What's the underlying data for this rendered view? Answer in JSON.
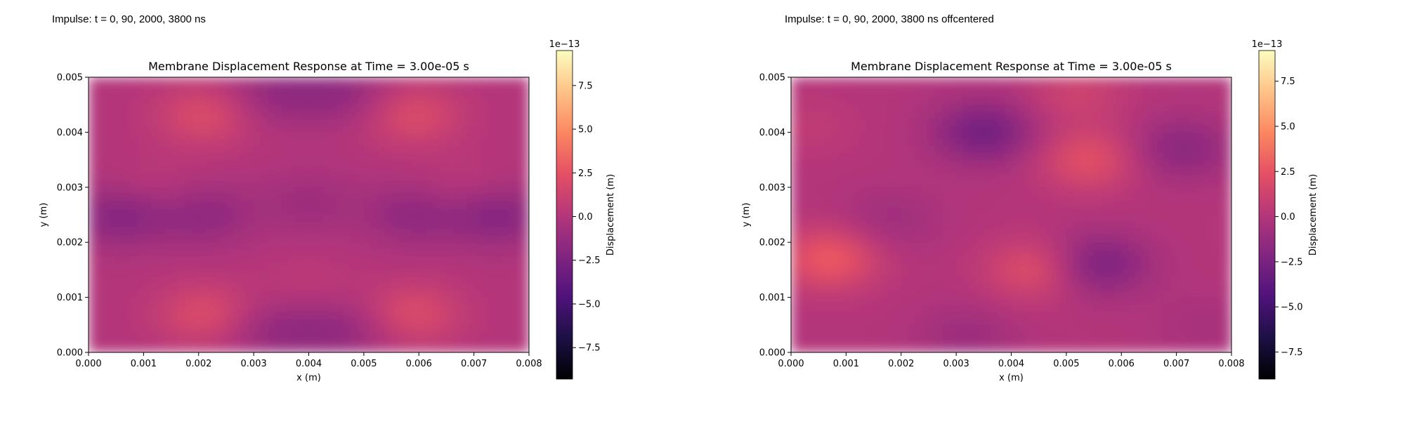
{
  "figure": {
    "panels": [
      {
        "caption": "Impulse: t = 0, 90, 2000, 3800 ns"
      },
      {
        "caption": "Impulse: t = 0, 90, 2000, 3800 ns offcentered"
      }
    ]
  },
  "chart_data": [
    {
      "type": "heatmap",
      "title": "Membrane Displacement Response at Time = 3.00e-05 s",
      "xlabel": "x (m)",
      "ylabel": "y (m)",
      "xlim": [
        0.0,
        0.008
      ],
      "ylim": [
        0.0,
        0.005
      ],
      "xticks": [
        "0.000",
        "0.001",
        "0.002",
        "0.003",
        "0.004",
        "0.005",
        "0.006",
        "0.007",
        "0.008"
      ],
      "yticks": [
        "0.000",
        "0.001",
        "0.002",
        "0.003",
        "0.004",
        "0.005"
      ],
      "colormap": "magma",
      "colorbar": {
        "label": "Displacement (m)",
        "scale_label": "1e−13",
        "range": [
          -9.3,
          9.5
        ],
        "ticks": [
          -7.5,
          -5.0,
          -2.5,
          0.0,
          2.5,
          5.0,
          7.5
        ],
        "tick_labels": [
          "−7.5",
          "−5.0",
          "−2.5",
          "0.0",
          "2.5",
          "5.0",
          "7.5"
        ]
      },
      "field_features": [
        {
          "x": 0.0006,
          "y": 0.0025,
          "value": -2.2
        },
        {
          "x": 0.0074,
          "y": 0.0025,
          "value": -2.2
        },
        {
          "x": 0.0021,
          "y": 0.0025,
          "value": -1.6
        },
        {
          "x": 0.0059,
          "y": 0.0025,
          "value": -1.6
        },
        {
          "x": 0.004,
          "y": 0.0027,
          "value": -1.0
        },
        {
          "x": 0.0034,
          "y": 0.0047,
          "value": -1.4
        },
        {
          "x": 0.0046,
          "y": 0.0047,
          "value": -1.4
        },
        {
          "x": 0.0034,
          "y": 0.0004,
          "value": -1.4
        },
        {
          "x": 0.0046,
          "y": 0.0004,
          "value": -1.4
        },
        {
          "x": 0.0021,
          "y": 0.0043,
          "value": 1.9
        },
        {
          "x": 0.0059,
          "y": 0.0043,
          "value": 1.9
        },
        {
          "x": 0.0021,
          "y": 0.0007,
          "value": 1.9
        },
        {
          "x": 0.0059,
          "y": 0.0007,
          "value": 1.9
        },
        {
          "x": 0.0011,
          "y": 0.0029,
          "value": 0.7
        },
        {
          "x": 0.0069,
          "y": 0.0029,
          "value": 0.7
        },
        {
          "x": 0.004,
          "y": 0.0012,
          "value": 0.5
        }
      ]
    },
    {
      "type": "heatmap",
      "title": "Membrane Displacement Response at Time = 3.00e-05 s",
      "xlabel": "x (m)",
      "ylabel": "y (m)",
      "xlim": [
        0.0,
        0.008
      ],
      "ylim": [
        0.0,
        0.005
      ],
      "xticks": [
        "0.000",
        "0.001",
        "0.002",
        "0.003",
        "0.004",
        "0.005",
        "0.006",
        "0.007",
        "0.008"
      ],
      "yticks": [
        "0.000",
        "0.001",
        "0.002",
        "0.003",
        "0.004",
        "0.005"
      ],
      "colormap": "magma",
      "colorbar": {
        "label": "Displacement (m)",
        "scale_label": "1e−13",
        "range": [
          -9.0,
          9.2
        ],
        "ticks": [
          -7.5,
          -5.0,
          -2.5,
          0.0,
          2.5,
          5.0,
          7.5
        ],
        "tick_labels": [
          "−7.5",
          "−5.0",
          "−2.5",
          "0.0",
          "2.5",
          "5.0",
          "7.5"
        ]
      },
      "field_features": [
        {
          "x": 0.0007,
          "y": 0.0017,
          "value": 2.8
        },
        {
          "x": 0.0054,
          "y": 0.0035,
          "value": 2.2
        },
        {
          "x": 0.0044,
          "y": 0.0015,
          "value": 2.0
        },
        {
          "x": 0.0052,
          "y": 0.0047,
          "value": 1.2
        },
        {
          "x": 0.0035,
          "y": 0.004,
          "value": -2.8
        },
        {
          "x": 0.0056,
          "y": 0.0016,
          "value": -2.4
        },
        {
          "x": 0.0071,
          "y": 0.0037,
          "value": -1.8
        },
        {
          "x": 0.0018,
          "y": 0.0024,
          "value": -0.9
        },
        {
          "x": 0.0032,
          "y": 0.0003,
          "value": -1.0
        },
        {
          "x": 0.0003,
          "y": 0.0041,
          "value": 0.6
        },
        {
          "x": 0.0075,
          "y": 0.0005,
          "value": -0.5
        }
      ]
    }
  ]
}
